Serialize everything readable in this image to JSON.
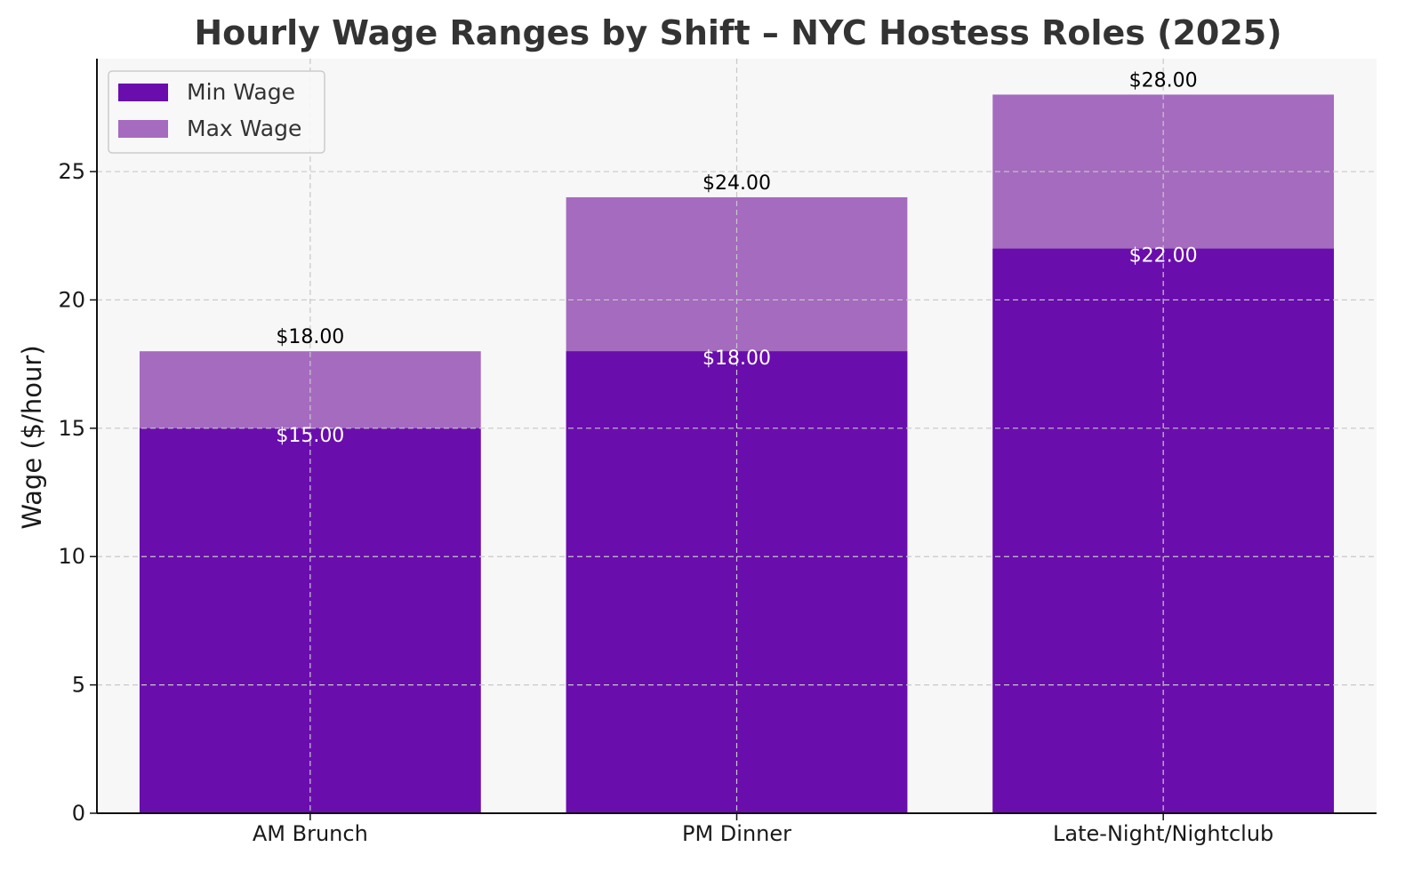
{
  "chart_data": {
    "type": "bar",
    "stacked_overlay": true,
    "title": "Hourly Wage Ranges by Shift – NYC Hostess Roles (2025)",
    "xlabel": "",
    "ylabel": "Wage ($/hour)",
    "categories": [
      "AM Brunch",
      "PM Dinner",
      "Late-Night/Nightclub"
    ],
    "series": [
      {
        "name": "Min Wage",
        "values": [
          15,
          18,
          22
        ],
        "color": "#6a0dad",
        "labels": [
          "$15.00",
          "$18.00",
          "$22.00"
        ],
        "label_color": "#ffffff"
      },
      {
        "name": "Max Wage",
        "values": [
          18,
          24,
          28
        ],
        "color": "#a56bbf",
        "labels": [
          "$18.00",
          "$24.00",
          "$28.00"
        ],
        "label_color": "#000000"
      }
    ],
    "ylim": [
      0,
      29.4
    ],
    "yticks": [
      0,
      5,
      10,
      15,
      20,
      25
    ],
    "grid": true,
    "legend": "top-left",
    "plot_background": "#f7f7f7"
  }
}
